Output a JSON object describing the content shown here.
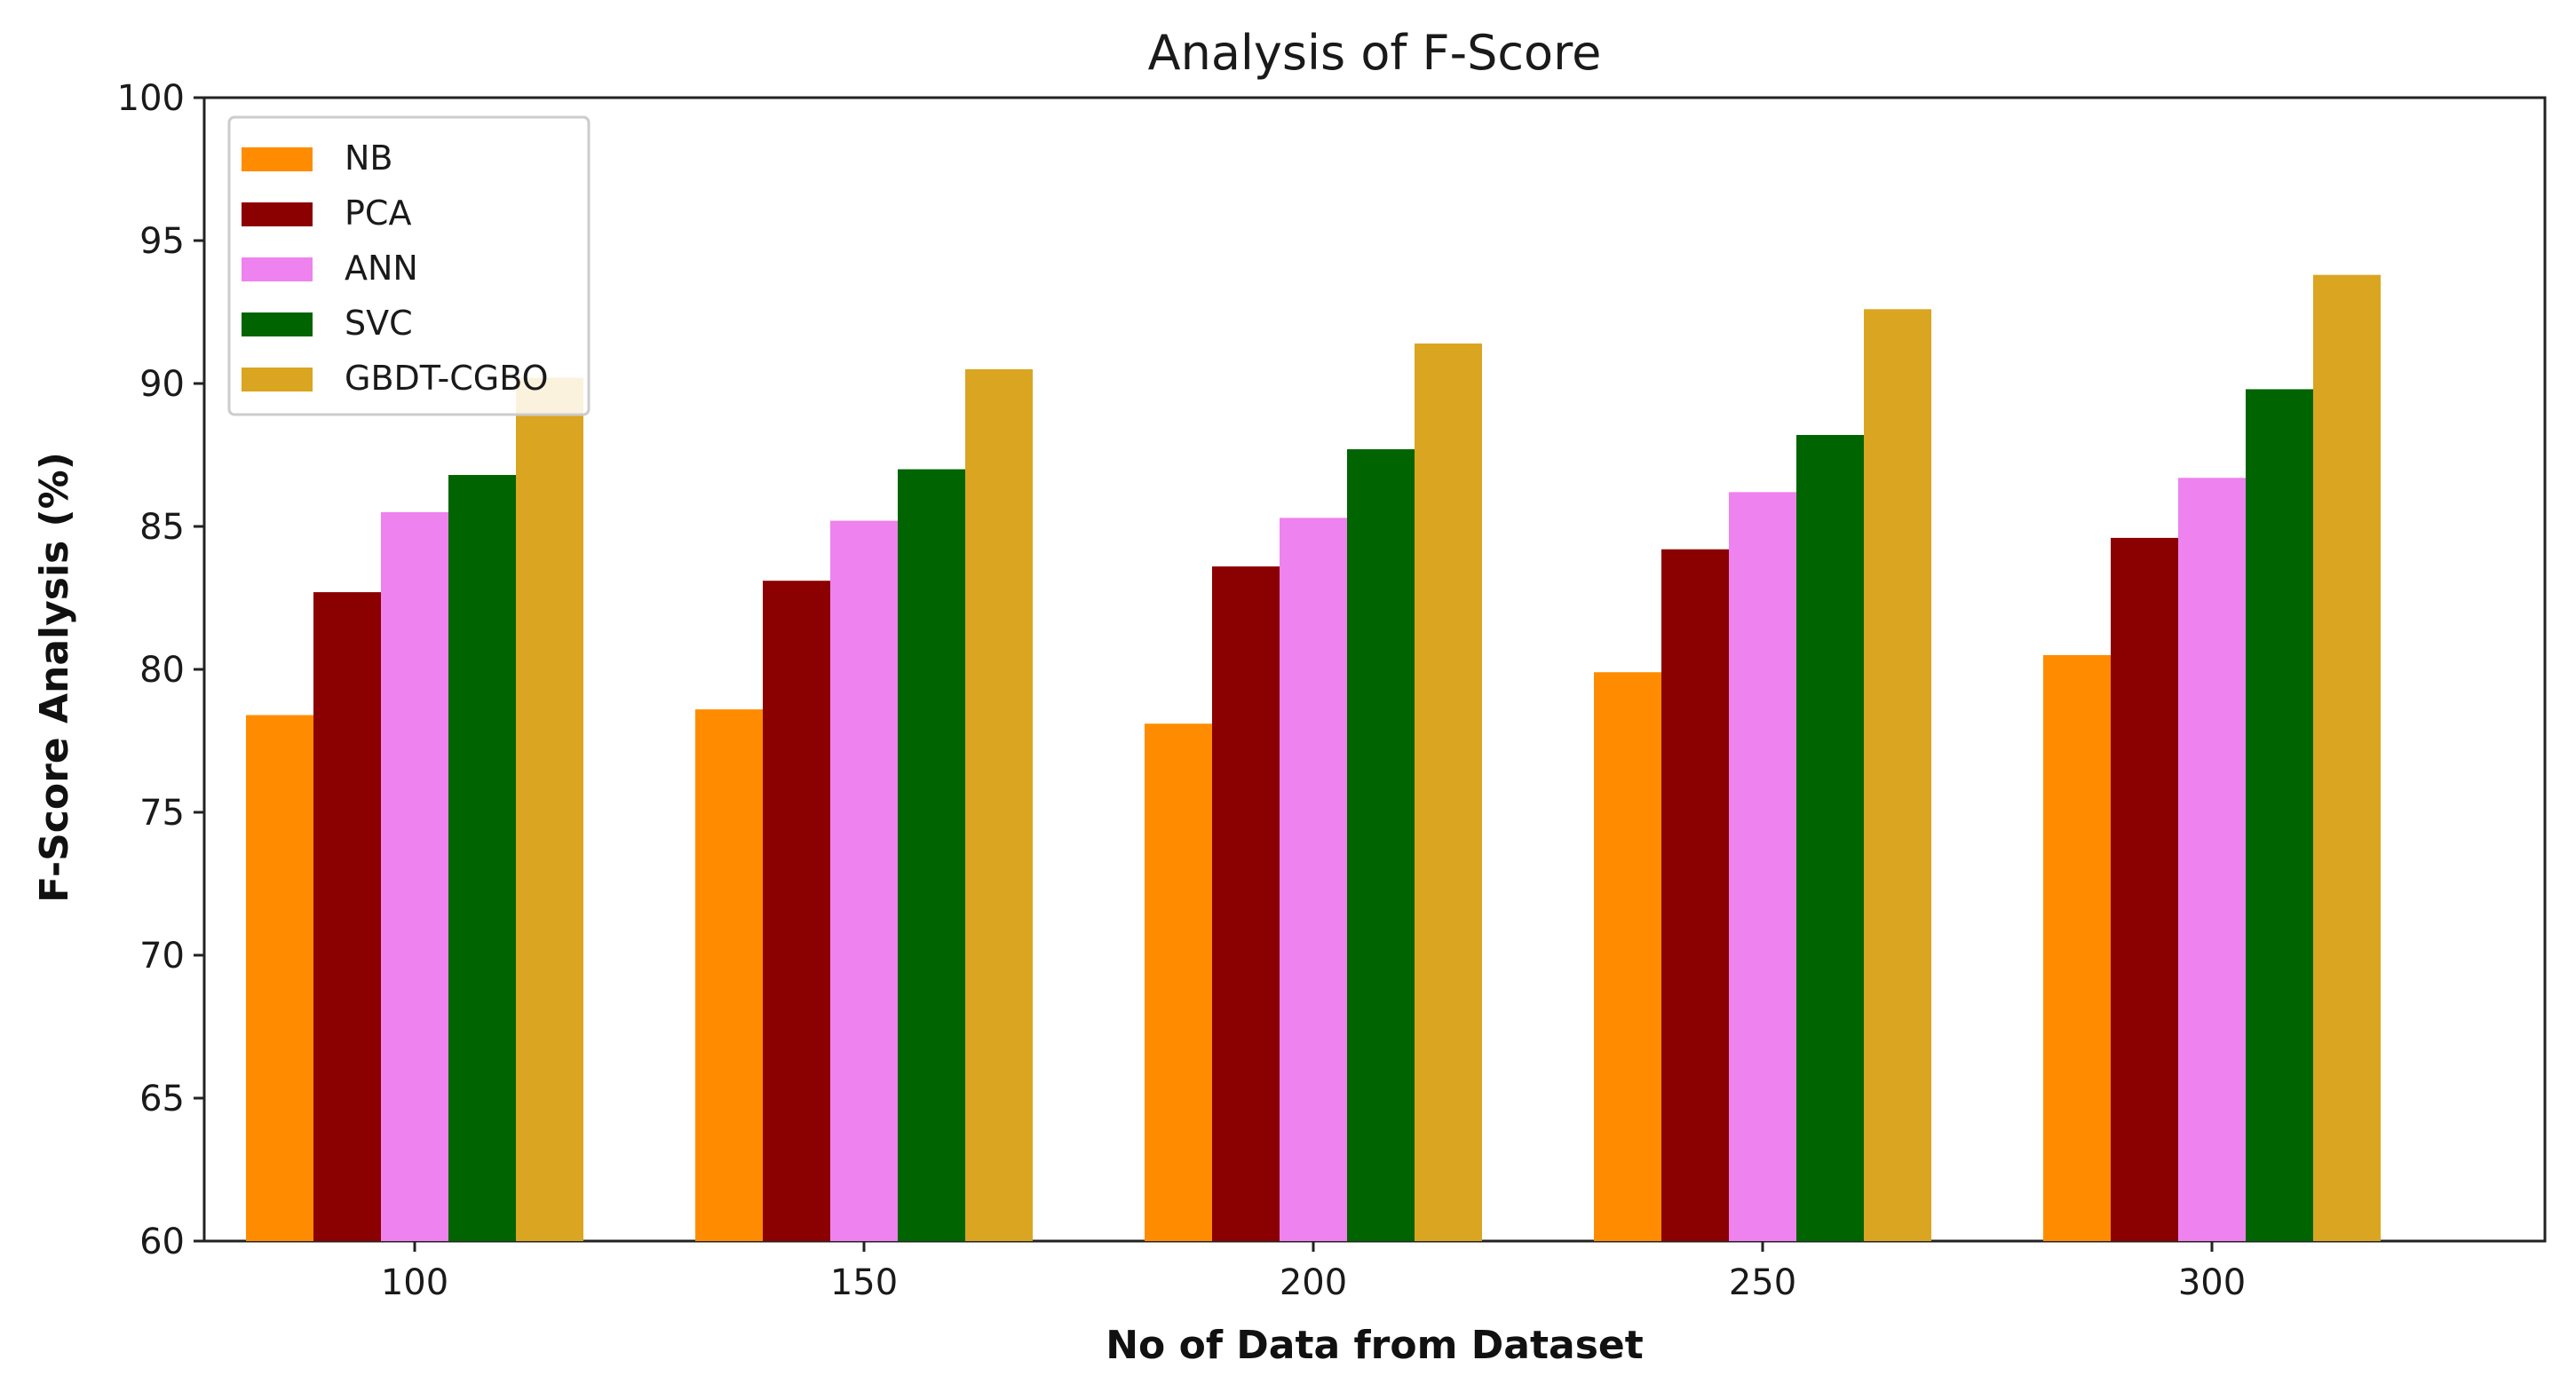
{
  "chart_data": {
    "type": "bar",
    "title": "Analysis of F-Score",
    "xlabel": "No of Data from Dataset",
    "ylabel": "F-Score Analysis (%)",
    "categories": [
      "100",
      "150",
      "200",
      "250",
      "300"
    ],
    "ylim": [
      60,
      100
    ],
    "yticks": [
      60,
      65,
      70,
      75,
      80,
      85,
      90,
      95,
      100
    ],
    "grid": false,
    "legend_position": "upper-left",
    "series": [
      {
        "name": "NB",
        "color": "#ff8c00",
        "values": [
          78.4,
          78.6,
          78.1,
          79.9,
          80.5
        ]
      },
      {
        "name": "PCA",
        "color": "#8b0000",
        "values": [
          82.7,
          83.1,
          83.6,
          84.2,
          84.6
        ]
      },
      {
        "name": "ANN",
        "color": "#ee82ee",
        "values": [
          85.5,
          85.2,
          85.3,
          86.2,
          86.7
        ]
      },
      {
        "name": "SVC",
        "color": "#006400",
        "values": [
          86.8,
          87.0,
          87.7,
          88.2,
          89.8
        ]
      },
      {
        "name": "GBDT-CGBO",
        "color": "#daa520",
        "values": [
          90.2,
          90.5,
          91.4,
          92.6,
          93.8
        ]
      }
    ]
  }
}
